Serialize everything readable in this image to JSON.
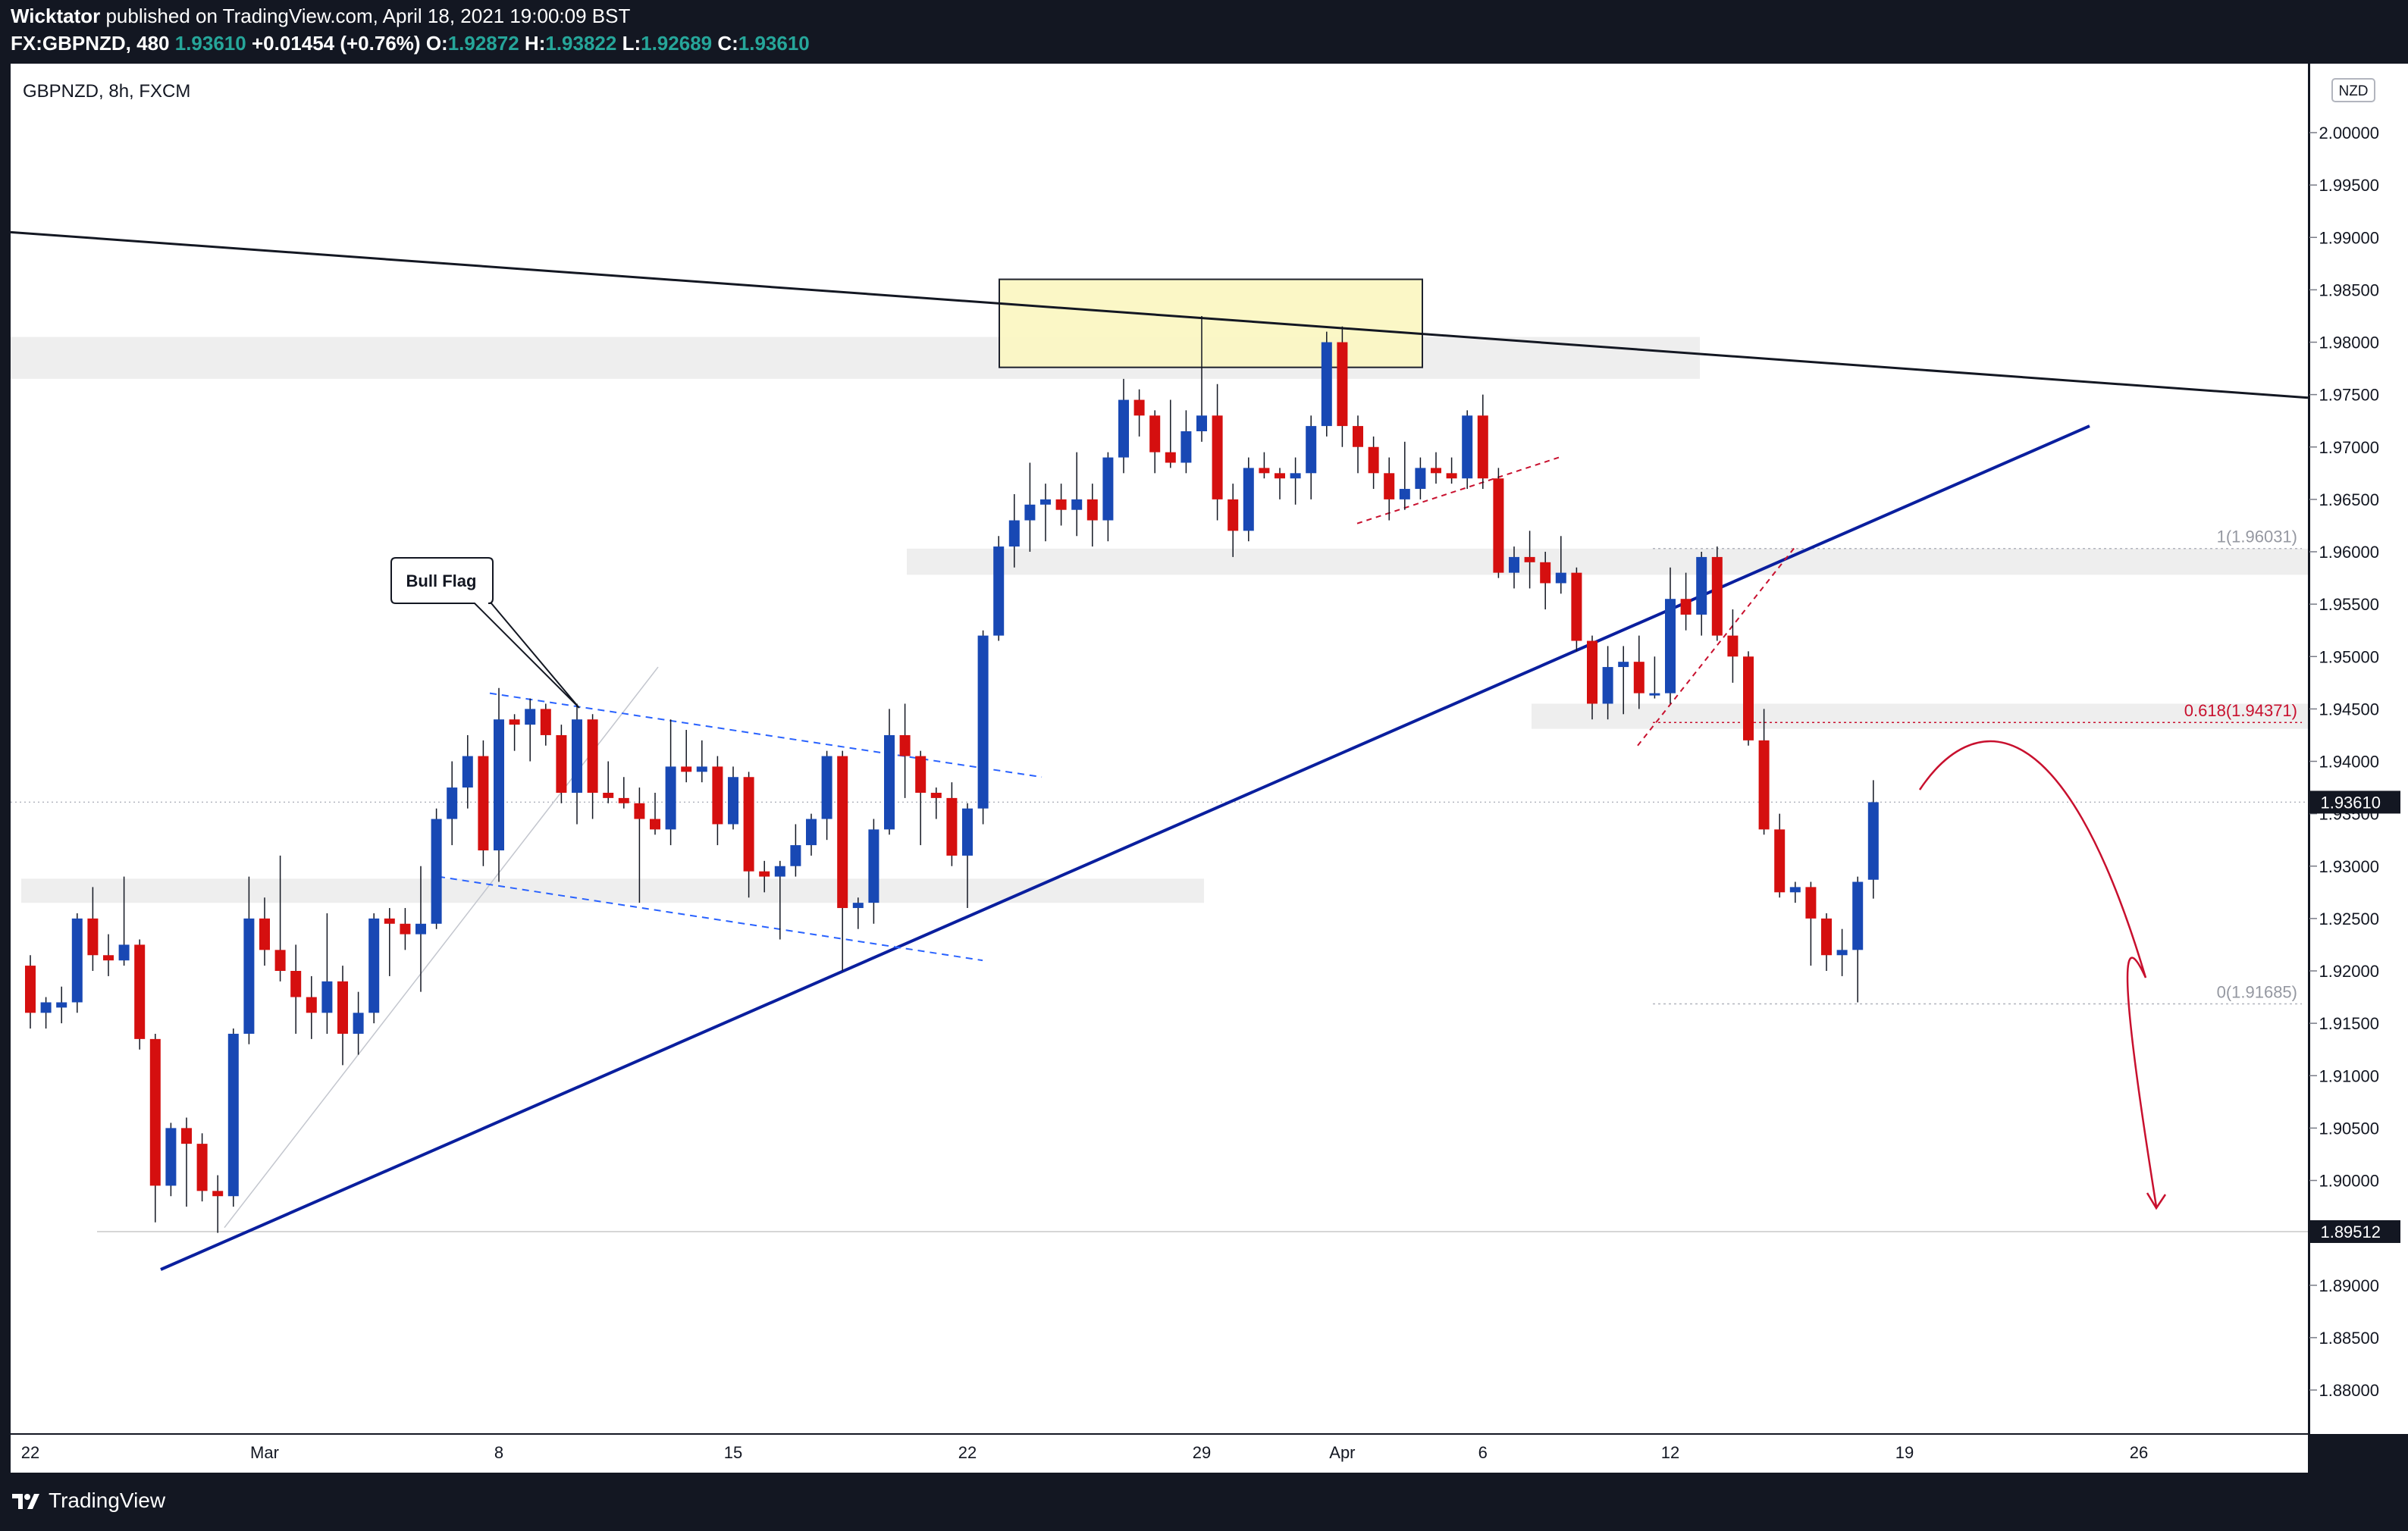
{
  "header": {
    "publisher": "Wicktator",
    "published_text": "published on TradingView.com, April 18, 2021 19:00:09 BST",
    "symbol_line": "FX:GBPNZD, 480",
    "last": "1.93610",
    "change": "+0.01454 (+0.76%)",
    "o_label": "O:",
    "o_value": "1.92872",
    "h_label": "H:",
    "h_value": "1.93822",
    "l_label": "L:",
    "l_value": "1.92689",
    "c_label": "C:",
    "c_value": "1.93610"
  },
  "legend": {
    "symbol_title": "GBPNZD, 8h, FXCM"
  },
  "footer": {
    "brand": "TradingView"
  },
  "currency_badge": "NZD",
  "colors": {
    "up": "#1848b4",
    "down": "#d50f0f",
    "background": "#ffffff",
    "frame": "#131722",
    "trendline_blue": "#0a1f9e",
    "fib_red": "#c8102e"
  },
  "chart_data": {
    "type": "candlestick",
    "instrument": "GBPNZD",
    "timeframe": "8h",
    "ylim": [
      1.875,
      2.01
    ],
    "y_ticks": [
      "2.00000",
      "1.99500",
      "1.99000",
      "1.98500",
      "1.98000",
      "1.97500",
      "1.97000",
      "1.96500",
      "1.96000",
      "1.95500",
      "1.95000",
      "1.94500",
      "1.94000",
      "1.93500",
      "1.93000",
      "1.92500",
      "1.92000",
      "1.91500",
      "1.91000",
      "1.90500",
      "1.90000",
      "1.89500",
      "1.89000",
      "1.88500",
      "1.88000"
    ],
    "x_ticks": [
      {
        "label": "22",
        "bar": 0
      },
      {
        "label": "Mar",
        "bar": 15
      },
      {
        "label": "8",
        "bar": 30
      },
      {
        "label": "15",
        "bar": 45
      },
      {
        "label": "22",
        "bar": 60
      },
      {
        "label": "29",
        "bar": 75
      },
      {
        "label": "Apr",
        "bar": 84
      },
      {
        "label": "6",
        "bar": 93
      },
      {
        "label": "12",
        "bar": 105
      },
      {
        "label": "19",
        "bar": 120
      },
      {
        "label": "26",
        "bar": 135
      }
    ],
    "price_labels": [
      {
        "value": 1.9361,
        "text": "1.93610",
        "style": "current"
      },
      {
        "value": 1.89512,
        "text": "1.89512",
        "style": "level"
      }
    ],
    "fib_levels": [
      {
        "label": "1(1.96031)",
        "value": 1.96031
      },
      {
        "label": "0.618(1.94371)",
        "value": 1.94371
      },
      {
        "label": "0(1.91685)",
        "value": 1.91685
      }
    ],
    "annotations": [
      {
        "text": "Bull Flag"
      }
    ],
    "candles": [
      {
        "o": 1.9205,
        "h": 1.9215,
        "l": 1.9145,
        "c": 1.916
      },
      {
        "o": 1.916,
        "h": 1.9175,
        "l": 1.9145,
        "c": 1.917
      },
      {
        "o": 1.9165,
        "h": 1.9185,
        "l": 1.915,
        "c": 1.917
      },
      {
        "o": 1.917,
        "h": 1.9255,
        "l": 1.916,
        "c": 1.925
      },
      {
        "o": 1.925,
        "h": 1.928,
        "l": 1.92,
        "c": 1.9215
      },
      {
        "o": 1.9215,
        "h": 1.9235,
        "l": 1.9195,
        "c": 1.921
      },
      {
        "o": 1.921,
        "h": 1.929,
        "l": 1.9205,
        "c": 1.9225
      },
      {
        "o": 1.9225,
        "h": 1.923,
        "l": 1.9125,
        "c": 1.9135
      },
      {
        "o": 1.9135,
        "h": 1.914,
        "l": 1.896,
        "c": 1.8995
      },
      {
        "o": 1.8995,
        "h": 1.9055,
        "l": 1.8985,
        "c": 1.905
      },
      {
        "o": 1.905,
        "h": 1.906,
        "l": 1.8975,
        "c": 1.9035
      },
      {
        "o": 1.9035,
        "h": 1.9045,
        "l": 1.898,
        "c": 1.899
      },
      {
        "o": 1.899,
        "h": 1.9005,
        "l": 1.895,
        "c": 1.8985
      },
      {
        "o": 1.8985,
        "h": 1.9145,
        "l": 1.8975,
        "c": 1.914
      },
      {
        "o": 1.914,
        "h": 1.929,
        "l": 1.913,
        "c": 1.925
      },
      {
        "o": 1.925,
        "h": 1.927,
        "l": 1.9205,
        "c": 1.922
      },
      {
        "o": 1.922,
        "h": 1.931,
        "l": 1.919,
        "c": 1.92
      },
      {
        "o": 1.92,
        "h": 1.9225,
        "l": 1.914,
        "c": 1.9175
      },
      {
        "o": 1.9175,
        "h": 1.9195,
        "l": 1.9135,
        "c": 1.916
      },
      {
        "o": 1.916,
        "h": 1.9255,
        "l": 1.914,
        "c": 1.919
      },
      {
        "o": 1.919,
        "h": 1.9205,
        "l": 1.911,
        "c": 1.914
      },
      {
        "o": 1.914,
        "h": 1.918,
        "l": 1.912,
        "c": 1.916
      },
      {
        "o": 1.916,
        "h": 1.9255,
        "l": 1.915,
        "c": 1.925
      },
      {
        "o": 1.925,
        "h": 1.926,
        "l": 1.9195,
        "c": 1.9245
      },
      {
        "o": 1.9245,
        "h": 1.926,
        "l": 1.922,
        "c": 1.9235
      },
      {
        "o": 1.9235,
        "h": 1.93,
        "l": 1.918,
        "c": 1.9245
      },
      {
        "o": 1.9245,
        "h": 1.9355,
        "l": 1.924,
        "c": 1.9345
      },
      {
        "o": 1.9345,
        "h": 1.94,
        "l": 1.932,
        "c": 1.9375
      },
      {
        "o": 1.9375,
        "h": 1.9425,
        "l": 1.9355,
        "c": 1.9405
      },
      {
        "o": 1.9405,
        "h": 1.942,
        "l": 1.93,
        "c": 1.9315
      },
      {
        "o": 1.9315,
        "h": 1.947,
        "l": 1.9285,
        "c": 1.944
      },
      {
        "o": 1.944,
        "h": 1.9445,
        "l": 1.941,
        "c": 1.9435
      },
      {
        "o": 1.9435,
        "h": 1.946,
        "l": 1.94,
        "c": 1.945
      },
      {
        "o": 1.945,
        "h": 1.9455,
        "l": 1.9415,
        "c": 1.9425
      },
      {
        "o": 1.9425,
        "h": 1.9435,
        "l": 1.936,
        "c": 1.937
      },
      {
        "o": 1.937,
        "h": 1.9455,
        "l": 1.934,
        "c": 1.944
      },
      {
        "o": 1.944,
        "h": 1.9445,
        "l": 1.9345,
        "c": 1.937
      },
      {
        "o": 1.937,
        "h": 1.94,
        "l": 1.936,
        "c": 1.9365
      },
      {
        "o": 1.9365,
        "h": 1.9385,
        "l": 1.9355,
        "c": 1.936
      },
      {
        "o": 1.936,
        "h": 1.9375,
        "l": 1.9265,
        "c": 1.9345
      },
      {
        "o": 1.9345,
        "h": 1.937,
        "l": 1.933,
        "c": 1.9335
      },
      {
        "o": 1.9335,
        "h": 1.944,
        "l": 1.932,
        "c": 1.9395
      },
      {
        "o": 1.9395,
        "h": 1.943,
        "l": 1.938,
        "c": 1.939
      },
      {
        "o": 1.939,
        "h": 1.942,
        "l": 1.938,
        "c": 1.9395
      },
      {
        "o": 1.9395,
        "h": 1.9405,
        "l": 1.932,
        "c": 1.934
      },
      {
        "o": 1.934,
        "h": 1.9395,
        "l": 1.9335,
        "c": 1.9385
      },
      {
        "o": 1.9385,
        "h": 1.939,
        "l": 1.927,
        "c": 1.9295
      },
      {
        "o": 1.9295,
        "h": 1.9305,
        "l": 1.9275,
        "c": 1.929
      },
      {
        "o": 1.929,
        "h": 1.9305,
        "l": 1.923,
        "c": 1.93
      },
      {
        "o": 1.93,
        "h": 1.934,
        "l": 1.929,
        "c": 1.932
      },
      {
        "o": 1.932,
        "h": 1.935,
        "l": 1.931,
        "c": 1.9345
      },
      {
        "o": 1.9345,
        "h": 1.941,
        "l": 1.9325,
        "c": 1.9405
      },
      {
        "o": 1.9405,
        "h": 1.941,
        "l": 1.92,
        "c": 1.926
      },
      {
        "o": 1.926,
        "h": 1.927,
        "l": 1.924,
        "c": 1.9265
      },
      {
        "o": 1.9265,
        "h": 1.9345,
        "l": 1.9245,
        "c": 1.9335
      },
      {
        "o": 1.9335,
        "h": 1.945,
        "l": 1.933,
        "c": 1.9425
      },
      {
        "o": 1.9425,
        "h": 1.9455,
        "l": 1.9365,
        "c": 1.9405
      },
      {
        "o": 1.9405,
        "h": 1.941,
        "l": 1.932,
        "c": 1.937
      },
      {
        "o": 1.937,
        "h": 1.9375,
        "l": 1.9345,
        "c": 1.9365
      },
      {
        "o": 1.9365,
        "h": 1.938,
        "l": 1.93,
        "c": 1.931
      },
      {
        "o": 1.931,
        "h": 1.936,
        "l": 1.926,
        "c": 1.9355
      },
      {
        "o": 1.9355,
        "h": 1.9525,
        "l": 1.934,
        "c": 1.952
      },
      {
        "o": 1.952,
        "h": 1.9615,
        "l": 1.9515,
        "c": 1.9605
      },
      {
        "o": 1.9605,
        "h": 1.9655,
        "l": 1.9585,
        "c": 1.963
      },
      {
        "o": 1.963,
        "h": 1.9685,
        "l": 1.96,
        "c": 1.9645
      },
      {
        "o": 1.9645,
        "h": 1.9665,
        "l": 1.961,
        "c": 1.965
      },
      {
        "o": 1.965,
        "h": 1.9665,
        "l": 1.9625,
        "c": 1.964
      },
      {
        "o": 1.964,
        "h": 1.9695,
        "l": 1.9615,
        "c": 1.965
      },
      {
        "o": 1.965,
        "h": 1.9665,
        "l": 1.9605,
        "c": 1.963
      },
      {
        "o": 1.963,
        "h": 1.9695,
        "l": 1.961,
        "c": 1.969
      },
      {
        "o": 1.969,
        "h": 1.9765,
        "l": 1.9675,
        "c": 1.9745
      },
      {
        "o": 1.9745,
        "h": 1.9755,
        "l": 1.971,
        "c": 1.973
      },
      {
        "o": 1.973,
        "h": 1.9735,
        "l": 1.9675,
        "c": 1.9695
      },
      {
        "o": 1.9695,
        "h": 1.9745,
        "l": 1.968,
        "c": 1.9685
      },
      {
        "o": 1.9685,
        "h": 1.9735,
        "l": 1.9675,
        "c": 1.9715
      },
      {
        "o": 1.9715,
        "h": 1.9825,
        "l": 1.9705,
        "c": 1.973
      },
      {
        "o": 1.973,
        "h": 1.976,
        "l": 1.963,
        "c": 1.965
      },
      {
        "o": 1.965,
        "h": 1.9665,
        "l": 1.9595,
        "c": 1.962
      },
      {
        "o": 1.962,
        "h": 1.969,
        "l": 1.961,
        "c": 1.968
      },
      {
        "o": 1.968,
        "h": 1.9695,
        "l": 1.967,
        "c": 1.9675
      },
      {
        "o": 1.9675,
        "h": 1.968,
        "l": 1.965,
        "c": 1.967
      },
      {
        "o": 1.967,
        "h": 1.969,
        "l": 1.9645,
        "c": 1.9675
      },
      {
        "o": 1.9675,
        "h": 1.973,
        "l": 1.965,
        "c": 1.972
      },
      {
        "o": 1.972,
        "h": 1.981,
        "l": 1.971,
        "c": 1.98
      },
      {
        "o": 1.98,
        "h": 1.9815,
        "l": 1.97,
        "c": 1.972
      },
      {
        "o": 1.972,
        "h": 1.973,
        "l": 1.9675,
        "c": 1.97
      },
      {
        "o": 1.97,
        "h": 1.971,
        "l": 1.966,
        "c": 1.9675
      },
      {
        "o": 1.9675,
        "h": 1.969,
        "l": 1.963,
        "c": 1.965
      },
      {
        "o": 1.965,
        "h": 1.9705,
        "l": 1.964,
        "c": 1.966
      },
      {
        "o": 1.966,
        "h": 1.969,
        "l": 1.965,
        "c": 1.968
      },
      {
        "o": 1.968,
        "h": 1.9695,
        "l": 1.9665,
        "c": 1.9675
      },
      {
        "o": 1.9675,
        "h": 1.969,
        "l": 1.9665,
        "c": 1.967
      },
      {
        "o": 1.967,
        "h": 1.9735,
        "l": 1.966,
        "c": 1.973
      },
      {
        "o": 1.973,
        "h": 1.975,
        "l": 1.966,
        "c": 1.967
      },
      {
        "o": 1.967,
        "h": 1.968,
        "l": 1.9575,
        "c": 1.958
      },
      {
        "o": 1.958,
        "h": 1.9605,
        "l": 1.9565,
        "c": 1.9595
      },
      {
        "o": 1.9595,
        "h": 1.962,
        "l": 1.9565,
        "c": 1.959
      },
      {
        "o": 1.959,
        "h": 1.96,
        "l": 1.9545,
        "c": 1.957
      },
      {
        "o": 1.957,
        "h": 1.9615,
        "l": 1.956,
        "c": 1.958
      },
      {
        "o": 1.958,
        "h": 1.9585,
        "l": 1.9505,
        "c": 1.9515
      },
      {
        "o": 1.9515,
        "h": 1.952,
        "l": 1.944,
        "c": 1.9455
      },
      {
        "o": 1.9455,
        "h": 1.951,
        "l": 1.944,
        "c": 1.949
      },
      {
        "o": 1.949,
        "h": 1.951,
        "l": 1.9445,
        "c": 1.9495
      },
      {
        "o": 1.9495,
        "h": 1.952,
        "l": 1.945,
        "c": 1.9465
      },
      {
        "o": 1.9465,
        "h": 1.95,
        "l": 1.946,
        "c": 1.9465
      },
      {
        "o": 1.9465,
        "h": 1.9585,
        "l": 1.9455,
        "c": 1.9555
      },
      {
        "o": 1.9555,
        "h": 1.958,
        "l": 1.9525,
        "c": 1.954
      },
      {
        "o": 1.954,
        "h": 1.96,
        "l": 1.952,
        "c": 1.9595
      },
      {
        "o": 1.9595,
        "h": 1.9605,
        "l": 1.9515,
        "c": 1.952
      },
      {
        "o": 1.952,
        "h": 1.9545,
        "l": 1.9475,
        "c": 1.95
      },
      {
        "o": 1.95,
        "h": 1.9505,
        "l": 1.9415,
        "c": 1.942
      },
      {
        "o": 1.942,
        "h": 1.945,
        "l": 1.933,
        "c": 1.9335
      },
      {
        "o": 1.9335,
        "h": 1.935,
        "l": 1.927,
        "c": 1.9275
      },
      {
        "o": 1.9275,
        "h": 1.9285,
        "l": 1.9265,
        "c": 1.928
      },
      {
        "o": 1.928,
        "h": 1.9285,
        "l": 1.9205,
        "c": 1.925
      },
      {
        "o": 1.925,
        "h": 1.9255,
        "l": 1.92,
        "c": 1.9215
      },
      {
        "o": 1.9215,
        "h": 1.924,
        "l": 1.9195,
        "c": 1.922
      },
      {
        "o": 1.922,
        "h": 1.929,
        "l": 1.917,
        "c": 1.9285
      },
      {
        "o": 1.9287,
        "h": 1.9382,
        "l": 1.9269,
        "c": 1.9361
      }
    ]
  }
}
